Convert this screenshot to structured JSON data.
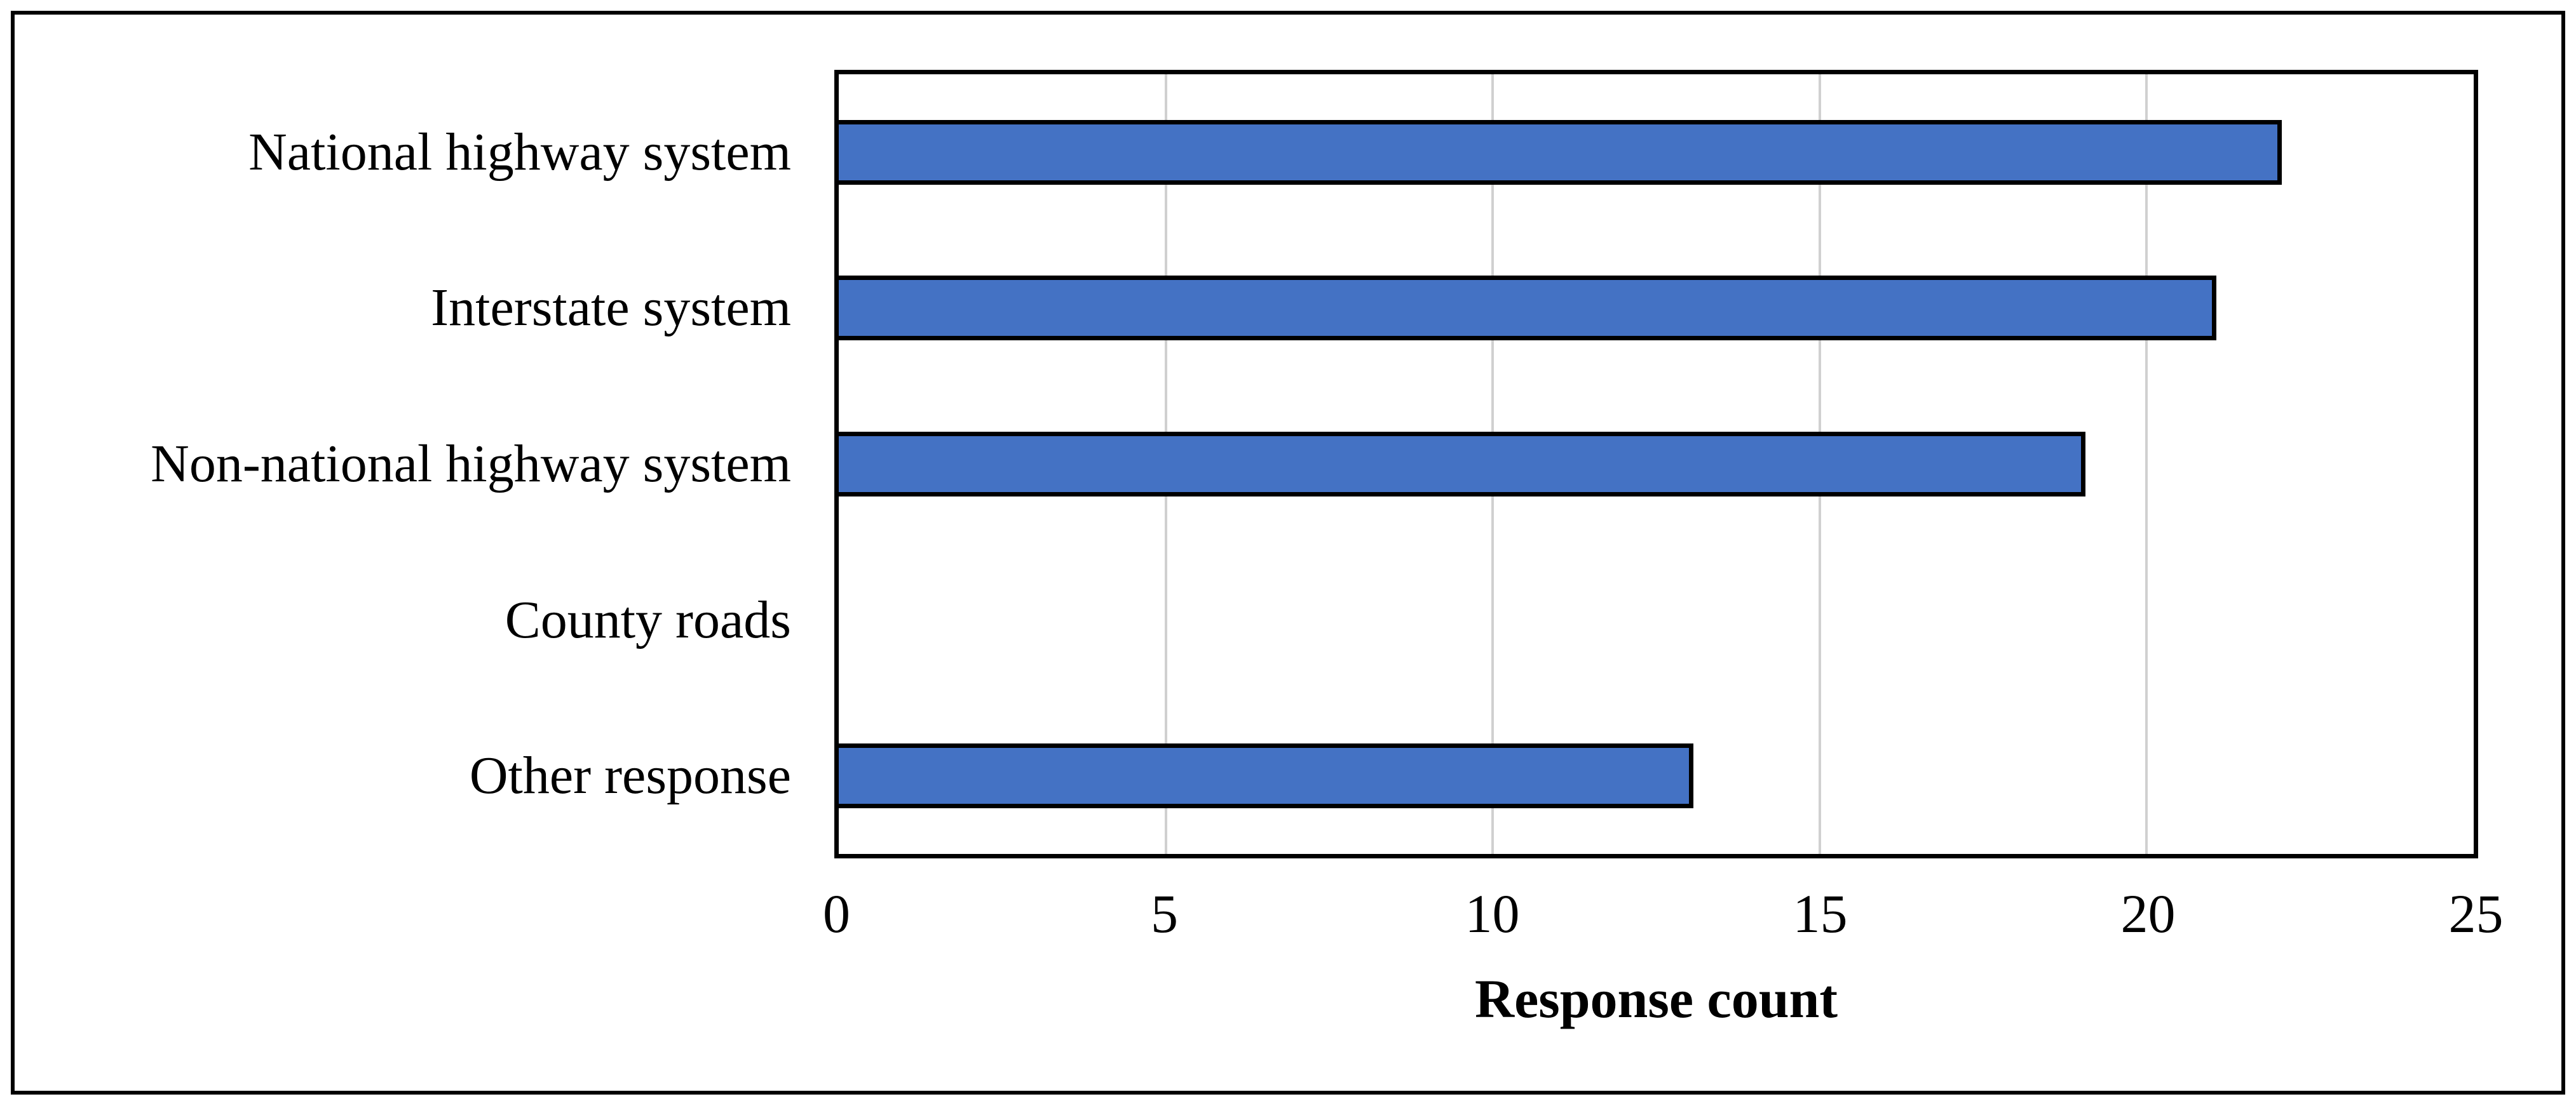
{
  "chart_data": {
    "type": "bar",
    "orientation": "horizontal",
    "title": "",
    "categories": [
      "National highway system",
      "Interstate system",
      "Non-national highway system",
      "County roads",
      "Other response"
    ],
    "values": [
      22,
      21,
      19,
      0,
      13
    ],
    "xlabel": "Response count",
    "ylabel": "",
    "xlim": [
      0,
      25
    ],
    "x_ticks": [
      "0",
      "5",
      "10",
      "15",
      "20",
      "25"
    ],
    "x_tick_values": [
      0,
      5,
      10,
      15,
      20,
      25
    ],
    "grid": "vertical gridlines at x tick positions",
    "legend": "none",
    "bar_fill_color": "#4472C4",
    "bar_border_color": "#000000",
    "gridline_color": "#D0D0D0",
    "plot_border_color": "#000000",
    "figure_border_color": "#000000",
    "background_color": "#FFFFFF"
  }
}
